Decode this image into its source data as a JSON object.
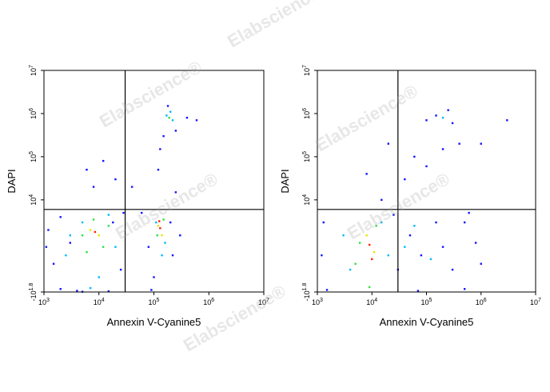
{
  "watermark": "Elabscience®",
  "chart_data": [
    {
      "type": "scatter",
      "xlabel": "Annexin V-Cyanine5",
      "ylabel": "DAPI",
      "xscale": "log",
      "yscale": "asinh",
      "xlim": [
        1000,
        10000000
      ],
      "ylim": [
        -63,
        10000000
      ],
      "xticks": [
        {
          "value": 1000,
          "label": "10^3"
        },
        {
          "value": 10000,
          "label": "10^4"
        },
        {
          "value": 100000,
          "label": "10^5"
        },
        {
          "value": 1000000,
          "label": "10^6"
        },
        {
          "value": 10000000,
          "label": "10^7"
        }
      ],
      "yticks": [
        {
          "value": -63,
          "label": "-10^1.8"
        },
        {
          "value": 10000,
          "label": "10^4"
        },
        {
          "value": 100000,
          "label": "10^5"
        },
        {
          "value": 1000000,
          "label": "10^6"
        },
        {
          "value": 10000000,
          "label": "10^7"
        }
      ],
      "gates": {
        "x": 30000,
        "y": 6000
      },
      "series": [
        {
          "color": "#1414ff",
          "x": [
            1500,
            2000,
            3000,
            1200,
            4000,
            25000,
            18000,
            6000,
            12000,
            20000,
            40000,
            60000,
            80000,
            90000,
            200000,
            300000,
            250000,
            150000,
            120000,
            130000,
            400000,
            180000,
            600000,
            2000,
            5000,
            15000,
            100000,
            220000,
            1100,
            28000,
            8000,
            250000
          ],
          "values": [
            300,
            -30,
            1000,
            2000,
            -50,
            200,
            3000,
            50000,
            80000,
            30000,
            20000,
            5000,
            800,
            -40,
            3000,
            1500,
            15000,
            300000,
            50000,
            150000,
            800000,
            1500000,
            700000,
            4000,
            -60,
            -55,
            100,
            500,
            800,
            5000,
            20000,
            400000
          ]
        },
        {
          "color": "#00b8ff",
          "x": [
            3000,
            5000,
            20000,
            15000,
            2500,
            10000,
            7000,
            110000,
            160000,
            140000,
            170000,
            220000,
            200000
          ],
          "values": [
            1500,
            3000,
            800,
            4500,
            500,
            100,
            -20,
            3000,
            1000,
            500,
            900000,
            700000,
            1100000
          ]
        },
        {
          "color": "#30e040",
          "x": [
            5000,
            8000,
            12000,
            15000,
            6000,
            115000,
            150000,
            190000
          ],
          "values": [
            1500,
            3500,
            800,
            2500,
            600,
            1500,
            3500,
            800000
          ]
        },
        {
          "color": "#f0e000",
          "x": [
            7000,
            10000,
            120000,
            140000
          ],
          "values": [
            2000,
            1500,
            2500,
            1500
          ]
        },
        {
          "color": "#ff2000",
          "x": [
            8500,
            130000,
            125000
          ],
          "values": [
            1800,
            2200,
            3200
          ]
        }
      ]
    },
    {
      "type": "scatter",
      "xlabel": "Annexin V-Cyanine5",
      "ylabel": "DAPI",
      "xscale": "log",
      "yscale": "asinh",
      "xlim": [
        1000,
        10000000
      ],
      "ylim": [
        -63,
        10000000
      ],
      "xticks": [
        {
          "value": 1000,
          "label": "10^3"
        },
        {
          "value": 10000,
          "label": "10^4"
        },
        {
          "value": 100000,
          "label": "10^5"
        },
        {
          "value": 1000000,
          "label": "10^6"
        },
        {
          "value": 10000000,
          "label": "10^7"
        }
      ],
      "yticks": [
        {
          "value": -63,
          "label": "-10^1.8"
        },
        {
          "value": 10000,
          "label": "10^4"
        },
        {
          "value": 100000,
          "label": "10^5"
        },
        {
          "value": 1000000,
          "label": "10^6"
        },
        {
          "value": 10000000,
          "label": "10^7"
        }
      ],
      "gates": {
        "x": 30000,
        "y": 6000
      },
      "series": [
        {
          "color": "#1414ff",
          "x": [
            1200,
            1500,
            30000,
            50000,
            80000,
            150000,
            300000,
            500000,
            800000,
            1000000,
            40000,
            60000,
            100000,
            200000,
            400000,
            1000000,
            100000,
            150000,
            300000,
            250000,
            3000000,
            15000,
            8000,
            20000,
            500000,
            70000,
            1300,
            25000,
            200000,
            600000
          ],
          "values": [
            500,
            -40,
            200,
            1500,
            500,
            3000,
            200,
            -30,
            1000,
            300,
            30000,
            100000,
            60000,
            150000,
            200000,
            200000,
            700000,
            900000,
            600000,
            1200000,
            700000,
            10000,
            40000,
            200000,
            3000,
            -50,
            3000,
            4500,
            800,
            5000
          ]
        },
        {
          "color": "#00b8ff",
          "x": [
            3000,
            20000,
            4000,
            15000,
            40000,
            120000,
            60000,
            200000
          ],
          "values": [
            1500,
            500,
            200,
            3000,
            800,
            400,
            2500,
            800000
          ]
        },
        {
          "color": "#30e040",
          "x": [
            6000,
            12000,
            5000,
            9000
          ],
          "values": [
            1000,
            2500,
            300,
            -10
          ]
        },
        {
          "color": "#f0e000",
          "x": [
            8000,
            11000
          ],
          "values": [
            1500,
            600
          ]
        },
        {
          "color": "#ff2000",
          "x": [
            9000,
            10000
          ],
          "values": [
            900,
            400
          ]
        }
      ]
    }
  ]
}
